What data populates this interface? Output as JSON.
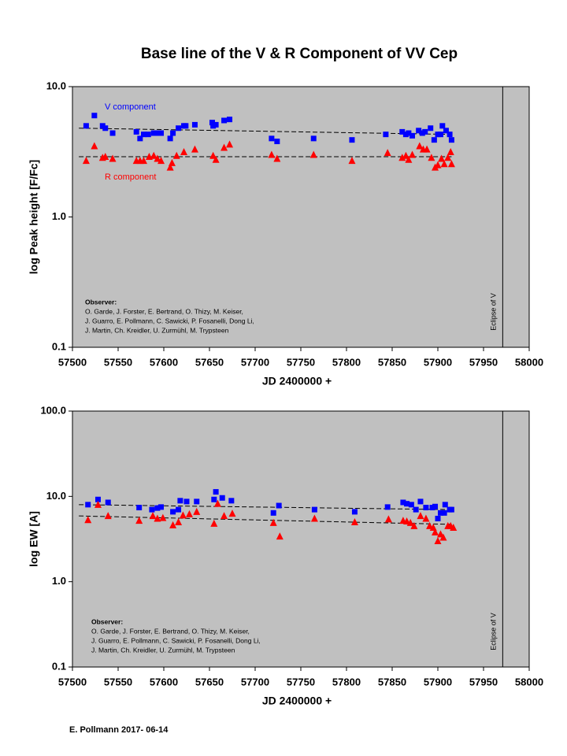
{
  "title": "Base line of the V & R Component of VV Cep",
  "footer": "E. Pollmann 2017- 06-14",
  "chart_data": [
    {
      "type": "scatter",
      "log_scale": true,
      "background": "#c0c0c0",
      "xlabel": "JD 2400000 +",
      "ylabel": "log Peak height [F/Fc]",
      "xlim": [
        57500,
        58000
      ],
      "xticks": [
        57500,
        57550,
        57600,
        57650,
        57700,
        57750,
        57800,
        57850,
        57900,
        57950,
        58000
      ],
      "ylim": [
        0.1,
        10
      ],
      "yticks": [
        0.1,
        {
          "value": 1,
          "label": "1.0"
        },
        {
          "value": 10,
          "label": "10.0"
        }
      ],
      "series": [
        {
          "name": "V component",
          "color": "#0000ff",
          "marker": "square",
          "x": [
            57515,
            57524,
            57533,
            57536,
            57544,
            57570,
            57574,
            57578,
            57583,
            57589,
            57593,
            57597,
            57607,
            57610,
            57616,
            57622,
            57624,
            57634,
            57653,
            57654,
            57657,
            57666,
            57672,
            57718,
            57724,
            57764,
            57806,
            57843,
            57861,
            57865,
            57868,
            57872,
            57879,
            57883,
            57886,
            57892,
            57896,
            57900,
            57903,
            57905,
            57909,
            57913,
            57915
          ],
          "values": [
            5.0,
            6.0,
            5.0,
            4.8,
            4.4,
            4.5,
            4.0,
            4.3,
            4.3,
            4.4,
            4.4,
            4.4,
            4.0,
            4.4,
            4.8,
            5.0,
            5.0,
            5.1,
            5.3,
            5.0,
            5.1,
            5.5,
            5.6,
            4.0,
            3.8,
            4.0,
            3.9,
            4.3,
            4.5,
            4.3,
            4.4,
            4.2,
            4.6,
            4.4,
            4.5,
            4.8,
            3.9,
            4.3,
            4.3,
            5.0,
            4.6,
            4.3,
            3.9
          ]
        },
        {
          "name": "R component",
          "color": "#ff0000",
          "marker": "triangle",
          "x": [
            57515,
            57524,
            57533,
            57536,
            57544,
            57570,
            57574,
            57578,
            57584,
            57589,
            57593,
            57597,
            57607,
            57609,
            57614,
            57622,
            57634,
            57654,
            57657,
            57666,
            57672,
            57718,
            57724,
            57764,
            57806,
            57845,
            57861,
            57865,
            57868,
            57872,
            57880,
            57884,
            57888,
            57893,
            57897,
            57900,
            57904,
            57907,
            57911,
            57914,
            57915
          ],
          "values": [
            2.7,
            3.5,
            2.85,
            2.9,
            2.8,
            2.7,
            2.7,
            2.7,
            2.9,
            2.95,
            2.8,
            2.7,
            2.4,
            2.6,
            2.95,
            3.15,
            3.3,
            2.95,
            2.75,
            3.4,
            3.6,
            3.0,
            2.8,
            3.0,
            2.7,
            3.1,
            2.85,
            2.95,
            2.75,
            3.0,
            3.5,
            3.3,
            3.3,
            2.85,
            2.4,
            2.5,
            2.8,
            2.55,
            2.85,
            3.15,
            2.55
          ]
        }
      ],
      "trendlines": [
        {
          "x": [
            57507,
            57915
          ],
          "values": [
            4.8,
            4.3
          ]
        },
        {
          "x": [
            57507,
            57915
          ],
          "values": [
            2.9,
            2.9
          ]
        }
      ],
      "eclipse": {
        "x": 57971,
        "label": "Eclipse of V"
      },
      "observer": [
        "Observer:",
        "O. Garde, J. Forster, E. Bertrand, O. Thizy, M. Keiser,",
        "J. Guarro, E. Pollmann, C. Sawicki, P. Fosanelli, Dong Li,",
        "J. Martin, Ch. Kreidler, U. Zurmühl, M. Trypsteen"
      ]
    },
    {
      "type": "scatter",
      "log_scale": true,
      "background": "#c0c0c0",
      "xlabel": "JD 2400000 +",
      "ylabel": "log EW [A]",
      "xlim": [
        57500,
        58000
      ],
      "xticks": [
        57500,
        57550,
        57600,
        57650,
        57700,
        57750,
        57800,
        57850,
        57900,
        57950,
        58000
      ],
      "ylim": [
        0.1,
        100
      ],
      "yticks": [
        0.1,
        {
          "value": 1,
          "label": "1.0"
        },
        {
          "value": 10,
          "label": "10.0"
        },
        {
          "value": 100,
          "label": "100.0"
        }
      ],
      "series": [
        {
          "color": "#0000ff",
          "marker": "square",
          "x": [
            57517,
            57528,
            57539,
            57573,
            57587,
            57593,
            57597,
            57610,
            57616,
            57618,
            57625,
            57636,
            57655,
            57657,
            57664,
            57674,
            57720,
            57726,
            57765,
            57809,
            57845,
            57862,
            57866,
            57871,
            57876,
            57881,
            57887,
            57894,
            57897,
            57900,
            57903,
            57907,
            57908,
            57913,
            57915
          ],
          "values": [
            8.0,
            9.2,
            8.5,
            7.4,
            7.0,
            7.3,
            7.5,
            6.6,
            7.0,
            8.9,
            8.7,
            8.7,
            9.2,
            11.3,
            9.6,
            8.9,
            6.4,
            7.8,
            7.0,
            6.6,
            7.5,
            8.5,
            8.2,
            8.0,
            7.0,
            8.7,
            7.4,
            7.4,
            7.6,
            5.5,
            6.4,
            6.4,
            8.0,
            7.0,
            7.0
          ]
        },
        {
          "color": "#ff0000",
          "marker": "triangle",
          "x": [
            57517,
            57528,
            57539,
            57573,
            57588,
            57593,
            57599,
            57610,
            57616,
            57621,
            57628,
            57636,
            57655,
            57659,
            57666,
            57675,
            57720,
            57727,
            57765,
            57809,
            57846,
            57862,
            57866,
            57870,
            57874,
            57881,
            57887,
            57891,
            57895,
            57897,
            57900,
            57903,
            57906,
            57911,
            57914,
            57917
          ],
          "values": [
            5.3,
            8.0,
            5.9,
            5.2,
            5.9,
            5.5,
            5.6,
            4.6,
            5.0,
            6.0,
            6.2,
            6.6,
            4.8,
            8.2,
            5.9,
            6.3,
            4.9,
            3.4,
            5.5,
            5.0,
            5.4,
            5.2,
            5.1,
            4.9,
            4.5,
            5.9,
            5.5,
            4.5,
            4.3,
            3.8,
            3.0,
            3.6,
            3.3,
            4.5,
            4.5,
            4.3
          ]
        }
      ],
      "trendlines": [
        {
          "x": [
            57507,
            57915
          ],
          "values": [
            8.0,
            7.0
          ]
        },
        {
          "x": [
            57507,
            57915
          ],
          "values": [
            5.9,
            4.7
          ]
        }
      ],
      "eclipse": {
        "x": 57971,
        "label": "Eclipse of V"
      },
      "observer": [
        "Observer:",
        "O. Garde, J. Forster, E. Bertrand, O. Thizy, M. Keiser,",
        "J. Guarro, E. Pollmann, C. Sawicki, P. Fosanelli, Dong Li,",
        "J. Martin, Ch. Kreidler, U. Zurmühl, M. Trypsteen"
      ]
    }
  ]
}
